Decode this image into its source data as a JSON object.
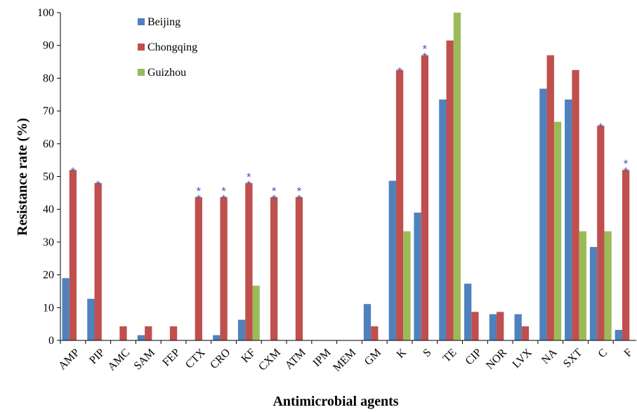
{
  "chart_data": {
    "type": "bar",
    "title": "",
    "xlabel": "Antimicrobial agents",
    "ylabel": "Resistance rate (%)",
    "ylim": [
      0,
      100
    ],
    "yticks": [
      "0",
      "10",
      "20",
      "30",
      "40",
      "50",
      "60",
      "70",
      "80",
      "90",
      "100"
    ],
    "grid": false,
    "legend_position": "top-left",
    "categories": [
      "AMP",
      "PIP",
      "AMC",
      "SAM",
      "FEP",
      "CTX",
      "CRO",
      "KF",
      "CXM",
      "ATM",
      "IPM",
      "MEM",
      "GM",
      "K",
      "S",
      "TE",
      "CIP",
      "NOR",
      "LVX",
      "NA",
      "SXT",
      "C",
      "F"
    ],
    "series": [
      {
        "name": "Beijing",
        "color": "#4f81bd",
        "values": [
          19,
          12.7,
          0,
          1.6,
          0,
          0,
          1.6,
          6.3,
          0,
          0,
          0,
          0,
          11.1,
          48.7,
          39,
          73.5,
          17.3,
          8,
          8,
          76.8,
          73.5,
          28.5,
          3.2
        ]
      },
      {
        "name": "Chongqing",
        "color": "#c0504d",
        "values": [
          52,
          48,
          4.3,
          4.3,
          4.3,
          43.7,
          43.7,
          48,
          43.7,
          43.7,
          0,
          0,
          4.3,
          82.5,
          87,
          91.5,
          8.7,
          8.7,
          4.3,
          87,
          82.5,
          65.5,
          52
        ]
      },
      {
        "name": "Guizhou",
        "color": "#9bbb59",
        "values": [
          0,
          0,
          0,
          0,
          0,
          0,
          0,
          16.7,
          0,
          0,
          0,
          0,
          0,
          33.3,
          0,
          100,
          0,
          0,
          0,
          66.7,
          33.3,
          33.3,
          0
        ]
      }
    ],
    "significance_marks": [
      {
        "category": "AMP",
        "marker": "*"
      },
      {
        "category": "PIP",
        "marker": "*"
      },
      {
        "category": "CTX",
        "marker": "**"
      },
      {
        "category": "CRO",
        "marker": "**"
      },
      {
        "category": "KF",
        "marker": "**"
      },
      {
        "category": "CXM",
        "marker": "**"
      },
      {
        "category": "ATM",
        "marker": "**"
      },
      {
        "category": "K",
        "marker": "*"
      },
      {
        "category": "S",
        "marker": "**"
      },
      {
        "category": "C",
        "marker": "*"
      },
      {
        "category": "F",
        "marker": "**"
      }
    ],
    "significance_color": "#4a5bb0"
  }
}
